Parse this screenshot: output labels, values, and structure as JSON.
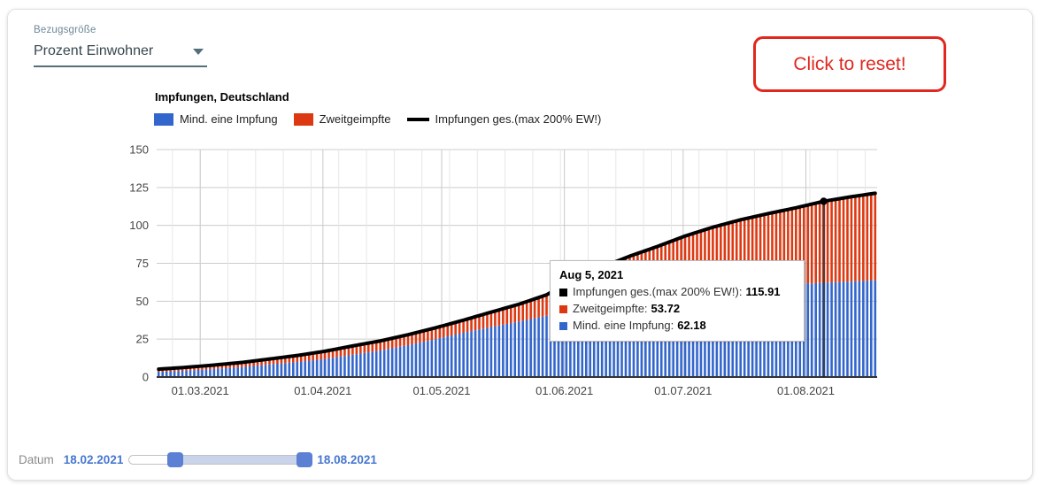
{
  "controls": {
    "bezugsgroesse_label": "Bezugsgröße",
    "bezugsgroesse_value": "Prozent Einwohner",
    "reset_button_label": "Click to reset!"
  },
  "chart": {
    "title": "Impfungen, Deutschland",
    "legend": [
      {
        "label": "Mind. eine Impfung",
        "color": "#3366cc",
        "marker": "square"
      },
      {
        "label": "Zweitgeimpfte",
        "color": "#dc3912",
        "marker": "square"
      },
      {
        "label": "Impfungen ges.(max 200% EW!)",
        "color": "#000000",
        "marker": "line"
      }
    ]
  },
  "tooltip": {
    "date": "Aug 5, 2021",
    "rows": [
      {
        "label": "Impfungen ges.(max 200% EW!):",
        "value": "115.91",
        "color": "#000000"
      },
      {
        "label": "Zweitgeimpfte:",
        "value": "53.72",
        "color": "#dc3912"
      },
      {
        "label": "Mind. eine Impfung:",
        "value": "62.18",
        "color": "#3366cc"
      }
    ]
  },
  "date_slider": {
    "label": "Datum",
    "start_value": "18.02.2021",
    "end_value": "18.08.2021"
  },
  "chart_data": {
    "type": "bar",
    "subtype": "stacked-daily-bars-with-total-line",
    "title": "Impfungen, Deutschland",
    "x_start_date": "18.02.2021",
    "x_end_date": "18.08.2021",
    "n_days": 182,
    "ylim": [
      0,
      150
    ],
    "y_ticks": [
      0,
      25,
      50,
      75,
      100,
      125,
      150
    ],
    "x_ticks": [
      {
        "label": "01.03.2021",
        "day": 11
      },
      {
        "label": "01.04.2021",
        "day": 42
      },
      {
        "label": "01.05.2021",
        "day": 72
      },
      {
        "label": "01.06.2021",
        "day": 103
      },
      {
        "label": "01.07.2021",
        "day": 133
      },
      {
        "label": "01.08.2021",
        "day": 164
      }
    ],
    "grid": {
      "horizontal": true,
      "vertical_weekly": true,
      "minor_color": "#e7e7e7",
      "major_color": "#c9c9c9",
      "h_color": "#cccccc"
    },
    "series": [
      {
        "name": "Mind. eine Impfung",
        "role": "bar",
        "color": "#3366cc"
      },
      {
        "name": "Zweitgeimpfte",
        "role": "bar-stacked",
        "color": "#dc3912"
      },
      {
        "name": "Impfungen ges.(max 200% EW!)",
        "role": "line-sum",
        "color": "#000000"
      }
    ],
    "interpolation": "linear-daily-from-anchors",
    "anchor_days": [
      0,
      7,
      14,
      21,
      28,
      35,
      42,
      49,
      56,
      63,
      70,
      77,
      84,
      91,
      98,
      105,
      112,
      119,
      126,
      133,
      140,
      147,
      154,
      161,
      168,
      175,
      181
    ],
    "anchor_mind_eine_impfung": [
      3.4,
      4.2,
      5.3,
      6.5,
      8.3,
      9.9,
      11.9,
      14.7,
      17.5,
      21.0,
      25.0,
      29.2,
      33.0,
      36.6,
      40.4,
      44.8,
      47.7,
      50.2,
      52.7,
      55.6,
      57.6,
      59.0,
      60.1,
      61.2,
      62.18,
      63.0,
      63.8
    ],
    "anchor_zweitgeimpfte": [
      1.8,
      2.2,
      2.6,
      3.1,
      3.6,
      4.3,
      5.1,
      5.8,
      6.3,
      6.9,
      7.5,
      8.3,
      9.8,
      11.4,
      13.8,
      20.0,
      24.8,
      29.5,
      33.4,
      37.4,
      41.2,
      44.7,
      47.7,
      50.4,
      53.72,
      55.9,
      57.4
    ],
    "highlight": {
      "day": 168,
      "date_label": "Aug 5, 2021",
      "mind_eine_impfung": 62.18,
      "zweitgeimpfte": 53.72,
      "gesamt": 115.91
    }
  }
}
